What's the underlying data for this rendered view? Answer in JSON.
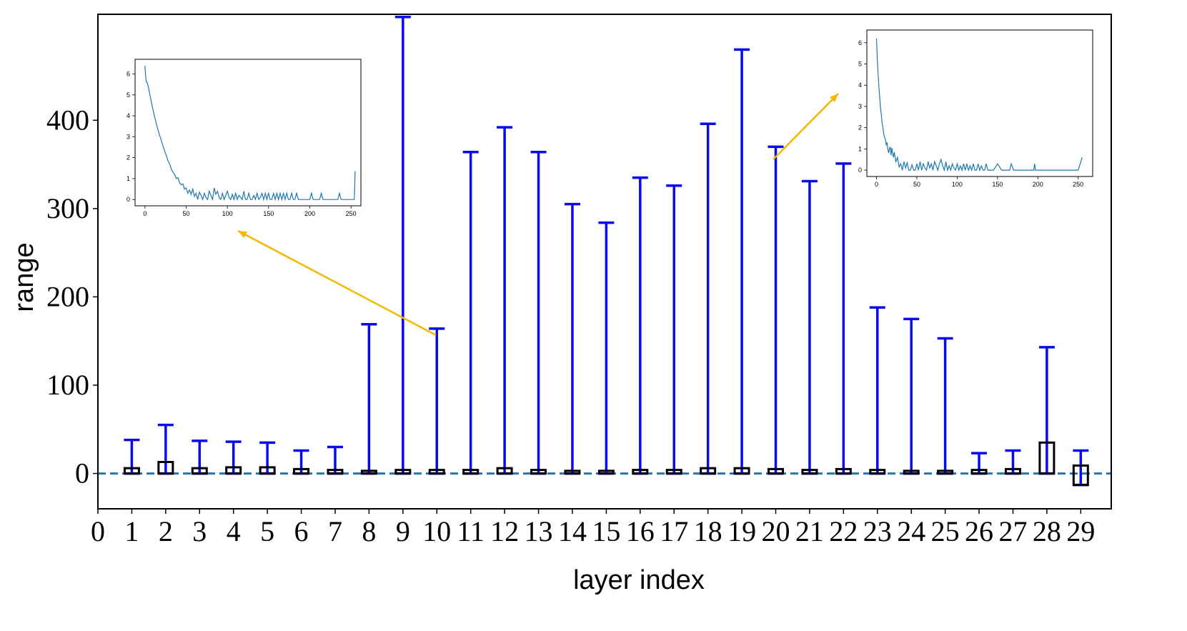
{
  "chart_data": [
    {
      "type": "range-bar",
      "xlabel": "layer index",
      "ylabel": "range",
      "xlim": [
        0,
        29.9
      ],
      "ylim": [
        -40,
        520
      ],
      "xticks": [
        "0",
        "1",
        "2",
        "3",
        "4",
        "5",
        "6",
        "7",
        "8",
        "9",
        "10",
        "11",
        "12",
        "13",
        "14",
        "15",
        "16",
        "17",
        "18",
        "19",
        "20",
        "21",
        "22",
        "23",
        "24",
        "25",
        "26",
        "27",
        "28",
        "29"
      ],
      "yticks": [
        "0",
        "100",
        "200",
        "300",
        "400"
      ],
      "reference_line": {
        "y": 0,
        "style": "dashed",
        "color": "#1f77b4"
      },
      "colors": {
        "whisker": "#0a0aee",
        "box": "#000000",
        "arrow": "#f5b800"
      },
      "layers": [
        1,
        2,
        3,
        4,
        5,
        6,
        7,
        8,
        9,
        10,
        11,
        12,
        13,
        14,
        15,
        16,
        17,
        18,
        19,
        20,
        21,
        22,
        23,
        24,
        25,
        26,
        27,
        28,
        29
      ],
      "max": [
        38,
        55,
        37,
        36,
        35,
        26,
        30,
        169,
        517,
        164,
        364,
        392,
        364,
        305,
        284,
        335,
        326,
        396,
        480,
        370,
        331,
        351,
        188,
        175,
        153,
        23,
        26,
        143,
        26
      ],
      "box_low": [
        0,
        0,
        0,
        0,
        0,
        0,
        0,
        0,
        0,
        0,
        0,
        0,
        0,
        0,
        0,
        0,
        0,
        0,
        0,
        0,
        0,
        0,
        0,
        0,
        0,
        0,
        0,
        0,
        -13
      ],
      "box_high": [
        6,
        13,
        6,
        7,
        7,
        5,
        4,
        3,
        4,
        4,
        4,
        6,
        4,
        3,
        3,
        4,
        4,
        6,
        6,
        5,
        4,
        5,
        4,
        3,
        3,
        4,
        5,
        35,
        9
      ],
      "min": [
        0,
        0,
        0,
        0,
        0,
        0,
        0,
        0,
        0,
        0,
        0,
        0,
        0,
        0,
        0,
        0,
        0,
        0,
        0,
        0,
        0,
        0,
        0,
        0,
        0,
        0,
        0,
        0,
        -13
      ]
    },
    {
      "type": "line",
      "inset_of_layer": 10,
      "xlim": [
        -12,
        262
      ],
      "ylim": [
        -0.3,
        6.7
      ],
      "xticks": [
        "0",
        "50",
        "100",
        "150",
        "200",
        "250"
      ],
      "yticks": [
        "0",
        "1",
        "2",
        "3",
        "4",
        "5",
        "6"
      ],
      "color": "#1f77b4",
      "x": [
        0,
        1,
        2,
        3,
        4,
        5,
        6,
        8,
        10,
        12,
        14,
        16,
        18,
        20,
        22,
        24,
        26,
        28,
        30,
        32,
        34,
        36,
        38,
        40,
        42,
        44,
        46,
        48,
        50,
        52,
        54,
        56,
        58,
        60,
        62,
        64,
        66,
        68,
        70,
        72,
        74,
        76,
        78,
        80,
        82,
        84,
        86,
        88,
        90,
        92,
        94,
        96,
        98,
        100,
        102,
        104,
        106,
        108,
        110,
        112,
        114,
        116,
        118,
        120,
        122,
        124,
        126,
        128,
        130,
        132,
        134,
        136,
        138,
        140,
        142,
        144,
        146,
        148,
        150,
        152,
        154,
        156,
        158,
        160,
        162,
        164,
        166,
        168,
        170,
        172,
        174,
        176,
        178,
        180,
        182,
        184,
        186,
        188,
        190,
        192,
        194,
        196,
        198,
        200,
        202,
        204,
        206,
        208,
        210,
        212,
        214,
        216,
        218,
        220,
        222,
        224,
        226,
        228,
        230,
        232,
        234,
        236,
        238,
        240,
        242,
        244,
        246,
        248,
        250,
        252,
        254,
        255
      ],
      "y": [
        6.4,
        5.8,
        5.6,
        5.55,
        5.4,
        5.2,
        5.0,
        4.6,
        4.25,
        3.9,
        3.6,
        3.3,
        3.05,
        2.8,
        2.55,
        2.3,
        2.1,
        1.85,
        1.7,
        1.45,
        1.3,
        1.2,
        1.0,
        1.05,
        0.8,
        0.7,
        0.75,
        0.5,
        0.55,
        0.3,
        0.45,
        0.25,
        0.5,
        0.15,
        0.3,
        0.0,
        0.35,
        0.2,
        0.0,
        0.3,
        0.1,
        0.0,
        0.4,
        0.2,
        0.0,
        0.55,
        0.25,
        0.4,
        0.1,
        0.0,
        0.3,
        0.0,
        0.2,
        0.4,
        0.1,
        0.0,
        0.25,
        0.0,
        0.3,
        0.0,
        0.2,
        0.1,
        0.0,
        0.4,
        0.0,
        0.0,
        0.3,
        0.0,
        0.0,
        0.2,
        0.0,
        0.3,
        0.0,
        0.1,
        0.3,
        0.0,
        0.3,
        0.0,
        0.3,
        0.0,
        0.0,
        0.3,
        0.0,
        0.3,
        0.0,
        0.3,
        0.0,
        0.3,
        0.0,
        0.3,
        0.0,
        0.0,
        0.3,
        0.0,
        0.0,
        0.3,
        0.0,
        0.0,
        0.0,
        0.0,
        0.0,
        0.0,
        0.0,
        0.0,
        0.3,
        0.0,
        0.0,
        0.0,
        0.0,
        0.0,
        0.3,
        0.0,
        0.0,
        0.0,
        0.0,
        0.0,
        0.0,
        0.0,
        0.0,
        0.0,
        0.0,
        0.3,
        0.0,
        0.0,
        0.0,
        0.0,
        0.0,
        0.0,
        0.0,
        0.0,
        0.0,
        1.35
      ]
    },
    {
      "type": "line",
      "inset_of_layer": 20,
      "xlim": [
        -12,
        268
      ],
      "ylim": [
        -0.3,
        6.6
      ],
      "xticks": [
        "0",
        "50",
        "100",
        "150",
        "200",
        "250"
      ],
      "yticks": [
        "0",
        "1",
        "2",
        "3",
        "4",
        "5",
        "6"
      ],
      "color": "#1f77b4",
      "x": [
        0,
        1,
        2,
        3,
        4,
        5,
        6,
        7,
        8,
        9,
        10,
        11,
        12,
        13,
        14,
        15,
        16,
        17,
        18,
        19,
        20,
        21,
        22,
        24,
        26,
        28,
        30,
        32,
        34,
        36,
        38,
        40,
        42,
        44,
        46,
        48,
        50,
        52,
        54,
        56,
        58,
        60,
        62,
        64,
        66,
        68,
        70,
        72,
        74,
        76,
        78,
        80,
        82,
        84,
        86,
        88,
        90,
        92,
        94,
        96,
        98,
        100,
        102,
        104,
        106,
        108,
        110,
        112,
        114,
        116,
        118,
        120,
        122,
        124,
        126,
        128,
        130,
        132,
        134,
        136,
        138,
        140,
        145,
        150,
        155,
        160,
        165,
        167,
        170,
        180,
        190,
        195,
        196,
        197,
        200,
        210,
        220,
        230,
        240,
        250,
        255
      ],
      "y": [
        6.2,
        5.2,
        4.5,
        3.9,
        3.4,
        2.9,
        2.6,
        2.2,
        2.0,
        1.7,
        1.55,
        1.45,
        1.2,
        1.3,
        1.0,
        0.8,
        1.0,
        1.1,
        0.7,
        1.05,
        0.8,
        0.6,
        0.85,
        0.4,
        0.6,
        0.15,
        0.3,
        0.0,
        0.4,
        0.1,
        0.35,
        0.0,
        0.0,
        0.25,
        0.0,
        0.0,
        0.3,
        0.0,
        0.4,
        0.0,
        0.3,
        0.1,
        0.0,
        0.4,
        0.1,
        0.3,
        0.0,
        0.4,
        0.2,
        0.0,
        0.3,
        0.5,
        0.2,
        0.0,
        0.4,
        0.0,
        0.2,
        0.0,
        0.3,
        0.1,
        0.0,
        0.3,
        0.0,
        0.2,
        0.0,
        0.3,
        0.0,
        0.3,
        0.0,
        0.2,
        0.0,
        0.3,
        0.0,
        0.0,
        0.3,
        0.0,
        0.2,
        0.0,
        0.0,
        0.3,
        0.0,
        0.0,
        0.0,
        0.3,
        0.0,
        0.0,
        0.0,
        0.3,
        0.0,
        0.0,
        0.0,
        0.0,
        0.3,
        0.0,
        0.0,
        0.0,
        0.0,
        0.0,
        0.0,
        0.0,
        0.6
      ]
    }
  ]
}
